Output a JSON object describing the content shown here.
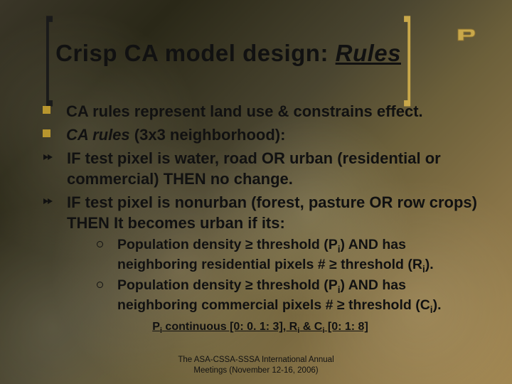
{
  "title": {
    "prefix": "Crisp CA model design: ",
    "emph": "Rules"
  },
  "colors": {
    "bullet_square": "#b8962e",
    "bracket_right": "#c9a84a",
    "text": "#111111",
    "logo_stroke": "#8a7030",
    "logo_fill": "#c9a84a",
    "footer": "#111111"
  },
  "bullets": [
    {
      "type": "square",
      "text": "CA rules represent land use & constrains effect."
    },
    {
      "type": "square",
      "text_html": "<i>CA rules</i> (3x3 neighborhood):"
    },
    {
      "type": "arrow",
      "text": "IF test pixel is water, road OR urban (residential or commercial) THEN no change."
    },
    {
      "type": "arrow",
      "text": "IF test pixel is nonurban (forest, pasture OR row crops) THEN It becomes urban if its:"
    }
  ],
  "sub_bullets": [
    {
      "text_html": "Population density ≥ threshold (P<sub>i</sub>) AND has neighboring residential pixels # ≥ threshold (R<sub>i</sub>)."
    },
    {
      "text_html": "Population density ≥ threshold (P<sub>i</sub>) AND has neighboring commercial pixels # ≥ threshold (C<sub>i</sub>)."
    }
  ],
  "note_html": "P<sub>i</sub> continuous [0: 0. 1: 3], R<sub>i</sub> &amp; C<sub>i</sub> [0: 1: 8]",
  "footer": {
    "line1": "The ASA-CSSA-SSSA International Annual",
    "line2": "Meetings (November 12-16, 2006)"
  }
}
